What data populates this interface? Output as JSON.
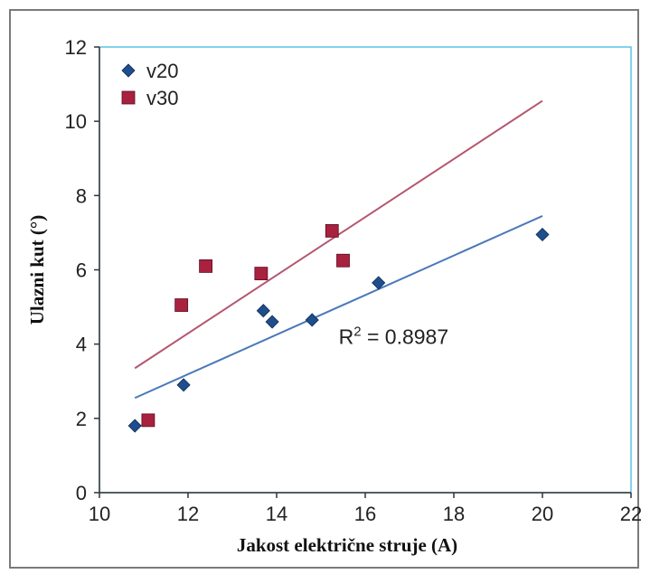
{
  "chart_data": {
    "type": "scatter",
    "xlabel": "Jakost električne struje (A)",
    "ylabel": "Ulazni kut (°)",
    "xlim": [
      10,
      22
    ],
    "ylim": [
      0,
      12
    ],
    "xticks": [
      10,
      12,
      14,
      16,
      18,
      20,
      22
    ],
    "yticks": [
      0,
      2,
      4,
      6,
      8,
      10,
      12
    ],
    "grid": false,
    "legend_position": "top-left",
    "series": [
      {
        "name": "v20",
        "marker": "diamond",
        "color": "#1f4e8c",
        "points": [
          {
            "x": 10.8,
            "y": 1.8
          },
          {
            "x": 11.9,
            "y": 2.9
          },
          {
            "x": 13.7,
            "y": 4.9
          },
          {
            "x": 13.9,
            "y": 4.6
          },
          {
            "x": 14.8,
            "y": 4.65
          },
          {
            "x": 16.3,
            "y": 5.65
          },
          {
            "x": 20.0,
            "y": 6.95
          }
        ],
        "trendline": {
          "x": [
            10.8,
            20.0
          ],
          "y": [
            2.55,
            7.45
          ],
          "color": "#4a78b8"
        }
      },
      {
        "name": "v30",
        "marker": "square",
        "color": "#a8213f",
        "points": [
          {
            "x": 11.1,
            "y": 1.95
          },
          {
            "x": 11.85,
            "y": 5.05
          },
          {
            "x": 12.4,
            "y": 6.1
          },
          {
            "x": 13.65,
            "y": 5.9
          },
          {
            "x": 15.25,
            "y": 7.05
          },
          {
            "x": 15.5,
            "y": 6.25
          }
        ],
        "trendline": {
          "x": [
            10.8,
            20.0
          ],
          "y": [
            3.35,
            10.55
          ],
          "color": "#b5566e"
        }
      }
    ],
    "annotations": [
      {
        "text_main": "R",
        "text_sup": "2",
        "text_rest": " = 0.8987",
        "x": 15.4,
        "y": 4.0
      }
    ]
  },
  "colors": {
    "plot_border": "#5cc3e6",
    "axis": "#333333"
  }
}
